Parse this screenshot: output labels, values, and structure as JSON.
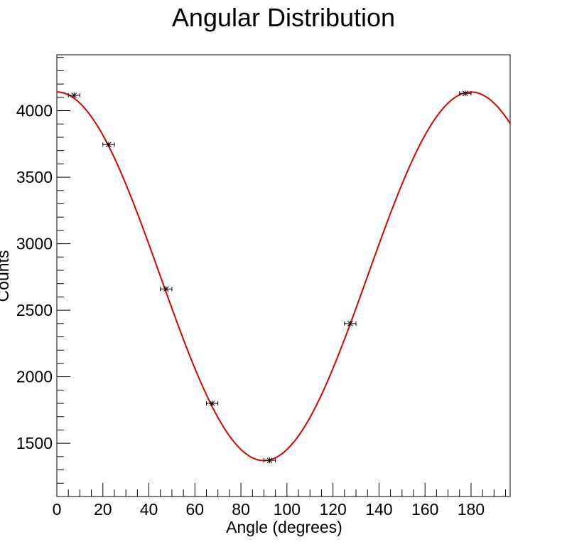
{
  "chart_data": {
    "type": "scatter",
    "title": "Angular Distribution",
    "xlabel": "Angle (degrees)",
    "ylabel": "Counts",
    "xlim": [
      0,
      197
    ],
    "ylim": [
      1100,
      4420
    ],
    "x_ticks": [
      0,
      20,
      40,
      60,
      80,
      100,
      120,
      140,
      160,
      180
    ],
    "y_ticks": [
      1500,
      2000,
      2500,
      3000,
      3500,
      4000
    ],
    "grid": false,
    "legend": "none",
    "series": [
      {
        "kind": "points_with_errors",
        "x": [
          7.5,
          22.5,
          47.5,
          67.5,
          92.5,
          127.5,
          177.5
        ],
        "y": [
          4115,
          3745,
          2660,
          1800,
          1372,
          2400,
          4130
        ],
        "x_err": [
          2.5,
          2.5,
          2.5,
          2.5,
          2.5,
          2.5,
          2.5
        ],
        "color": "#000000"
      },
      {
        "kind": "fit_curve",
        "function": "A + B*cos(theta)^2",
        "A": 1370,
        "B": 2770,
        "color": "#e00000"
      }
    ]
  }
}
